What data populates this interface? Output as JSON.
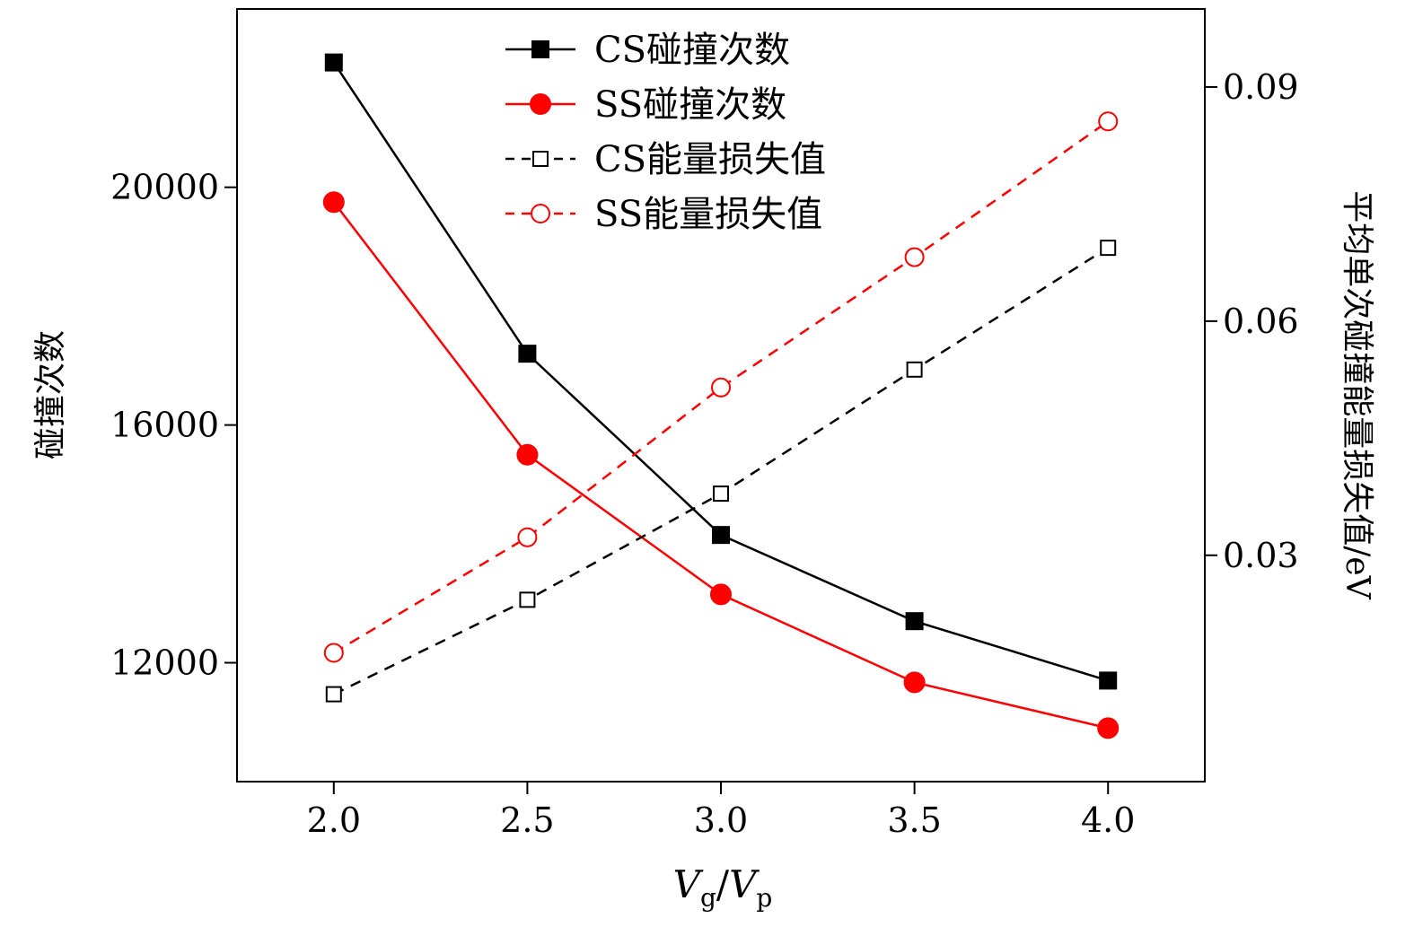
{
  "chart_data": {
    "type": "line",
    "title": "",
    "xlabel": "Vg/Vp",
    "xlabel_parts": {
      "v1": "V",
      "s1": "g",
      "slash": "/",
      "v2": "V",
      "s2": "p"
    },
    "ylabel_left": "碰撞次数",
    "ylabel_right": "平均单次碰撞能量损失值/eV",
    "x": [
      2.0,
      2.5,
      3.0,
      3.5,
      4.0
    ],
    "xlim": [
      1.75,
      4.25
    ],
    "ylim_left": [
      10000,
      23000
    ],
    "ylim_right": [
      0.001,
      0.1
    ],
    "x_ticks": [
      "2.0",
      "2.5",
      "3.0",
      "3.5",
      "4.0"
    ],
    "y_left_ticks": [
      "12000",
      "16000",
      "20000"
    ],
    "y_left_tick_values": [
      12000,
      16000,
      20000
    ],
    "y_right_ticks": [
      "0.03",
      "0.06",
      "0.09"
    ],
    "y_right_tick_values": [
      0.03,
      0.06,
      0.09
    ],
    "grid": false,
    "legend_position": "top-center",
    "series": [
      {
        "name": "CS碰撞次数",
        "axis": "left",
        "color": "#000000",
        "marker": "square-filled",
        "dash": false,
        "values": [
          22100,
          17200,
          14150,
          12700,
          11700
        ]
      },
      {
        "name": "SS碰撞次数",
        "axis": "left",
        "color": "#ff0000",
        "marker": "circle-filled",
        "dash": false,
        "values": [
          19750,
          15500,
          13150,
          11670,
          10900
        ]
      },
      {
        "name": "CS能量损失值",
        "axis": "right",
        "color": "#000000",
        "marker": "square-open",
        "dash": true,
        "values": [
          0.0122,
          0.0243,
          0.0379,
          0.0538,
          0.0694
        ]
      },
      {
        "name": "SS能量损失值",
        "axis": "right",
        "color": "#ff0000",
        "marker": "circle-open",
        "dash": true,
        "values": [
          0.0175,
          0.0323,
          0.0515,
          0.0682,
          0.0856
        ]
      }
    ]
  }
}
